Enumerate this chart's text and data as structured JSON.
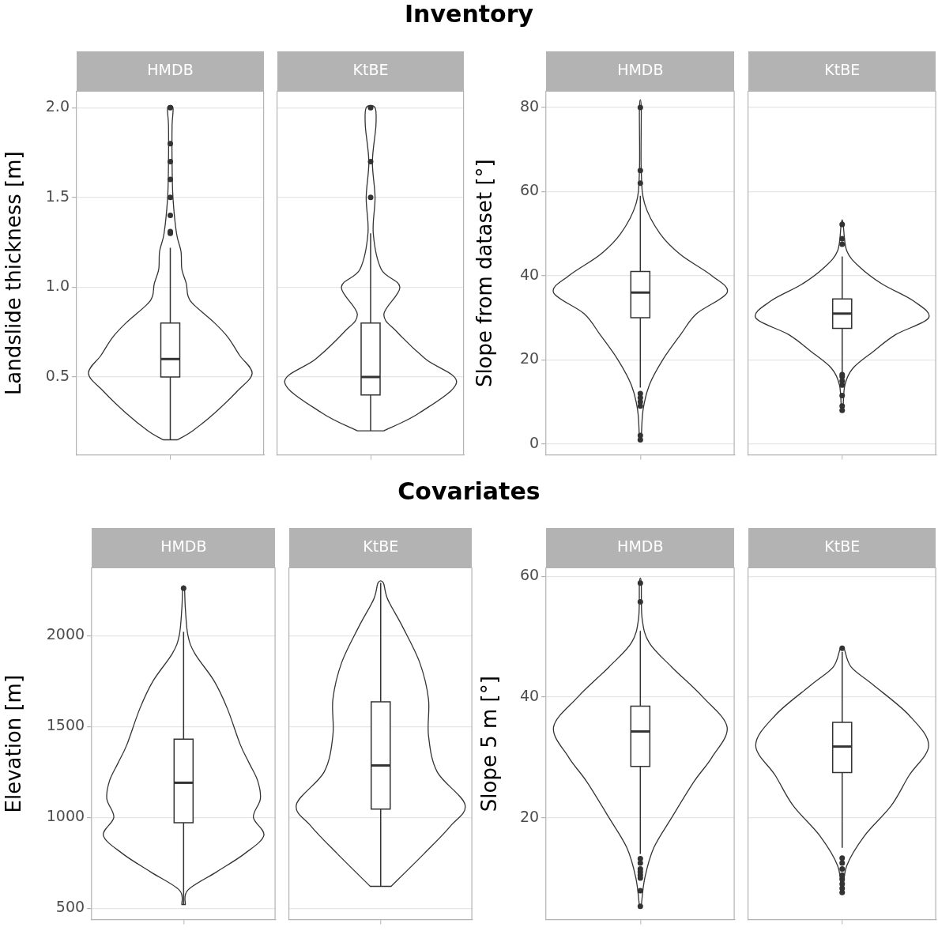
{
  "chart_data": [
    {
      "type": "box",
      "title": "Inventory",
      "ylabel": "Landslide thickness [m]",
      "categories": [
        "HMDB",
        "KtBE"
      ],
      "ylim": [
        0.066,
        2.09
      ],
      "yticks": [
        {
          "value": 0.5,
          "label": "0.5"
        },
        {
          "value": 1,
          "label": "1.0"
        },
        {
          "value": 1.5,
          "label": "1.5"
        },
        {
          "value": 2,
          "label": "2.0"
        }
      ],
      "grid": true,
      "boxes": [
        {
          "low": 0.15,
          "q1": 0.5,
          "median": 0.6,
          "q3": 0.8,
          "high": 1.22,
          "outliers": [
            1.3,
            1.31,
            1.4,
            1.5,
            1.6,
            1.7,
            1.8,
            2.0
          ]
        },
        {
          "low": 0.2,
          "q1": 0.4,
          "median": 0.5,
          "q3": 0.8,
          "high": 1.3,
          "outliers": [
            1.5,
            1.7,
            2.0
          ]
        }
      ]
    },
    {
      "type": "box",
      "ylabel": "Slope from dataset [°]",
      "categories": [
        "HMDB",
        "KtBE"
      ],
      "ylim": [
        -2.6,
        83.8
      ],
      "yticks": [
        0,
        20,
        40,
        60,
        80
      ],
      "grid": true,
      "boxes": [
        {
          "low": 13.4,
          "q1": 30,
          "median": 36,
          "q3": 41,
          "high": 59,
          "outliers": [
            80,
            65,
            62,
            12,
            11,
            10,
            9,
            2,
            1
          ]
        },
        {
          "low": 15.7,
          "q1": 27.5,
          "median": 31,
          "q3": 34.5,
          "high": 44.6,
          "outliers": [
            52.2,
            48.8,
            47.5,
            16.5,
            16,
            15,
            14,
            11.5,
            9,
            8
          ]
        }
      ]
    },
    {
      "type": "box",
      "title": "Covariates",
      "ylabel": "Elevation [m]",
      "categories": [
        "HMDB",
        "KtBE"
      ],
      "ylim": [
        437,
        2371
      ],
      "yticks": [
        500,
        1000,
        1500,
        2000
      ],
      "grid": true,
      "boxes": [
        {
          "low": 520,
          "q1": 970,
          "median": 1190,
          "q3": 1430,
          "high": 2020,
          "outliers": [
            2260
          ]
        },
        {
          "low": 620,
          "q1": 1045,
          "median": 1285,
          "q3": 1635,
          "high": 2290
        }
      ]
    },
    {
      "type": "box",
      "ylabel": "Slope 5 m [°]",
      "categories": [
        "HMDB",
        "KtBE"
      ],
      "ylim": [
        3.1,
        61.4
      ],
      "yticks": [
        20,
        40,
        60
      ],
      "grid": true,
      "boxes": [
        {
          "low": 14,
          "q1": 28.5,
          "median": 34.3,
          "q3": 38.5,
          "high": 51,
          "outliers": [
            58.9,
            55.8,
            13.2,
            12.5,
            11.5,
            11,
            10.5,
            10,
            7.9,
            5.3
          ]
        },
        {
          "low": 15,
          "q1": 27.5,
          "median": 31.8,
          "q3": 35.8,
          "high": 47.5,
          "outliers": [
            48.1,
            13.3,
            12.5,
            11.5,
            10.5,
            9.8,
            9,
            8.3,
            7.6
          ]
        }
      ]
    }
  ]
}
